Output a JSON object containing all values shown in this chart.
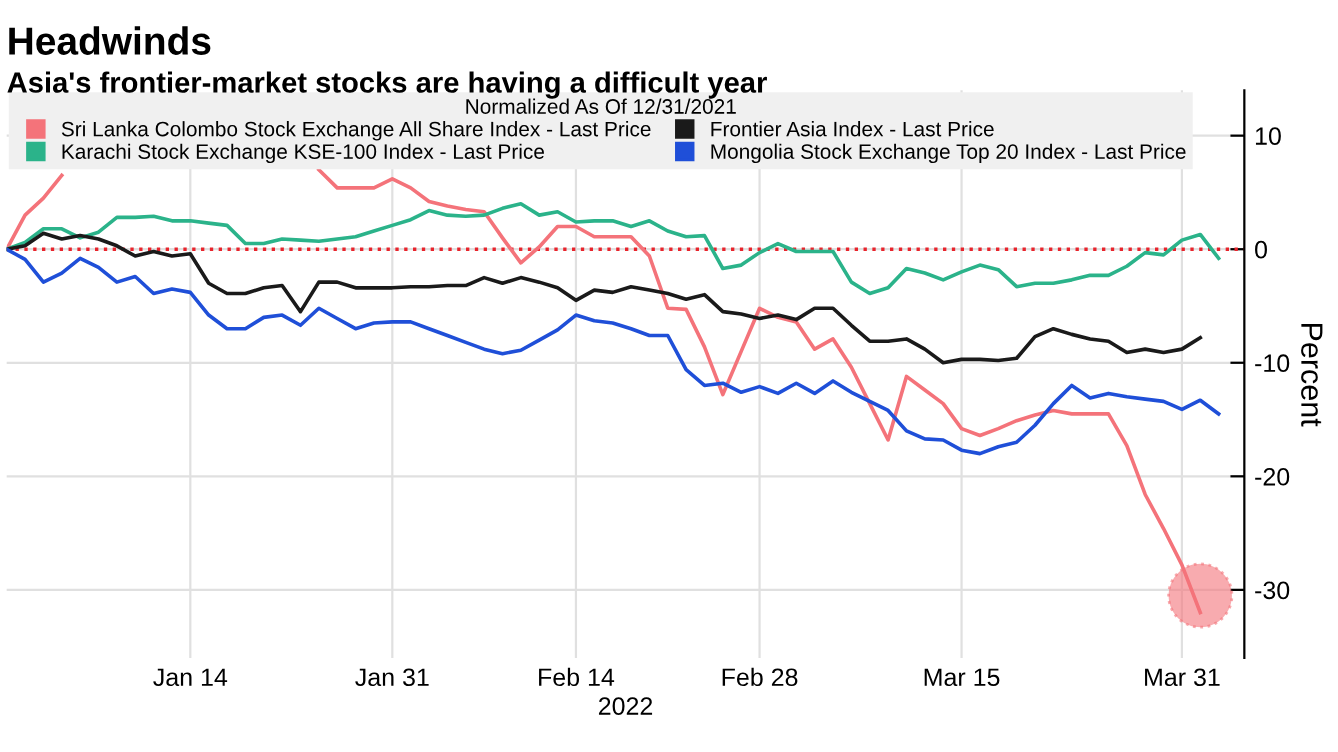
{
  "chart_data": {
    "type": "line",
    "title": "Headwinds",
    "subtitle": "Asia's frontier-market stocks are having a difficult year",
    "xlabel": "2022",
    "ylabel": "Percent",
    "legend_title": "Normalized As Of 12/31/2021",
    "categories": [
      null,
      null,
      null,
      null,
      null,
      null,
      null,
      null,
      null,
      null,
      "Jan 14",
      null,
      null,
      null,
      null,
      null,
      null,
      null,
      null,
      null,
      null,
      "Jan 31",
      null,
      null,
      null,
      null,
      null,
      null,
      null,
      null,
      null,
      "Feb 14",
      null,
      null,
      null,
      null,
      null,
      null,
      null,
      null,
      null,
      "Feb 28",
      null,
      null,
      null,
      null,
      null,
      null,
      null,
      null,
      null,
      null,
      "Mar 15",
      null,
      null,
      null,
      null,
      null,
      null,
      null,
      null,
      null,
      null,
      null,
      "Mar 31",
      null,
      null
    ],
    "series": [
      {
        "name": "Sri Lanka Colombo Stock Exchange All Share Index - Last Price",
        "color": "#f4737a",
        "values": [
          0,
          3,
          4.5,
          6.5,
          null,
          null,
          null,
          null,
          null,
          null,
          null,
          null,
          null,
          null,
          null,
          null,
          null,
          7,
          5.4,
          5.4,
          5.4,
          6.2,
          5.4,
          4.2,
          3.8,
          3.5,
          3.3,
          1,
          -1.2,
          0.2,
          2,
          2,
          1.1,
          1.1,
          1.1,
          -0.6,
          -5.2,
          -5.3,
          -8.6,
          -12.8,
          -9,
          -5.2,
          -6,
          -6.4,
          -8.8,
          -7.9,
          -10.4,
          -13.6,
          -16.8,
          -11.2,
          -12.4,
          -13.6,
          -15.8,
          -16.4,
          -15.8,
          -15.1,
          -14.6,
          -14.2,
          -14.5,
          -14.5,
          -14.5,
          -17.3,
          -21.6,
          -24.6,
          -27.8,
          -32,
          null
        ]
      },
      {
        "name": "Karachi Stock Exchange KSE-100 Index - Last Price",
        "color": "#2bb38a",
        "values": [
          0,
          0.6,
          1.8,
          1.8,
          1,
          1.5,
          2.8,
          2.8,
          2.9,
          2.5,
          2.5,
          2.3,
          2.1,
          0.5,
          0.5,
          0.9,
          0.8,
          0.7,
          0.9,
          1.1,
          1.6,
          2.1,
          2.6,
          3.4,
          3,
          2.9,
          3,
          3.6,
          4,
          3,
          3.3,
          2.4,
          2.5,
          2.5,
          2,
          2.5,
          1.6,
          1.1,
          1.2,
          -1.7,
          -1.4,
          -0.3,
          0.5,
          -0.2,
          -0.2,
          -0.2,
          -2.9,
          -3.9,
          -3.4,
          -1.7,
          -2.1,
          -2.7,
          -2,
          -1.4,
          -1.8,
          -3.3,
          -3,
          -3,
          -2.7,
          -2.3,
          -2.3,
          -1.5,
          -0.3,
          -0.5,
          0.8,
          1.3,
          -0.8
        ]
      },
      {
        "name": "Frontier Asia Index - Last Price",
        "color": "#1a1a1a",
        "values": [
          0,
          0.3,
          1.4,
          0.9,
          1.2,
          0.9,
          0.3,
          -0.6,
          -0.2,
          -0.6,
          -0.4,
          -3,
          -3.9,
          -3.9,
          -3.4,
          -3.2,
          -5.5,
          -2.9,
          -2.9,
          -3.4,
          -3.4,
          -3.4,
          -3.3,
          -3.3,
          -3.2,
          -3.2,
          -2.5,
          -3,
          -2.5,
          -2.9,
          -3.4,
          -4.5,
          -3.6,
          -3.8,
          -3.3,
          -3.6,
          -3.9,
          -4.4,
          -4,
          -5.5,
          -5.7,
          -6.1,
          -5.8,
          -6.2,
          -5.2,
          -5.2,
          -6.7,
          -8.1,
          -8.1,
          -7.9,
          -8.8,
          -10,
          -9.7,
          -9.7,
          -9.8,
          -9.6,
          -7.7,
          -7,
          -7.5,
          -7.9,
          -8.1,
          -9.1,
          -8.8,
          -9.1,
          -8.8,
          -7.8,
          null
        ]
      },
      {
        "name": "Mongolia Stock Exchange Top 20 Index - Last Price",
        "color": "#1f4fd8",
        "values": [
          0,
          -0.9,
          -2.9,
          -2.1,
          -0.8,
          -1.6,
          -2.9,
          -2.4,
          -3.9,
          -3.5,
          -3.8,
          -5.8,
          -7,
          -7,
          -6,
          -5.8,
          -6.7,
          -5.2,
          -6.1,
          -7,
          -6.5,
          -6.4,
          -6.4,
          -7,
          -7.6,
          -8.2,
          -8.8,
          -9.2,
          -8.9,
          -8,
          -7.1,
          -5.8,
          -6.3,
          -6.5,
          -7,
          -7.6,
          -7.6,
          -10.6,
          -12,
          -11.8,
          -12.6,
          -12.1,
          -12.7,
          -11.8,
          -12.7,
          -11.6,
          -12.6,
          -13.4,
          -14.2,
          -16,
          -16.7,
          -16.8,
          -17.7,
          -18,
          -17.4,
          -17,
          -15.5,
          -13.6,
          -12,
          -13.1,
          -12.7,
          -13,
          -13.2,
          -13.4,
          -14.1,
          -13.3,
          -14.5
        ]
      },
      {
        "type": "scatter",
        "marker": "circle",
        "color": "#f4737a",
        "values": [
          null,
          null,
          null,
          null,
          null,
          null,
          null,
          null,
          null,
          null,
          null,
          null,
          null,
          null,
          null,
          null,
          null,
          null,
          null,
          null,
          null,
          null,
          null,
          null,
          null,
          null,
          null,
          null,
          null,
          null,
          null,
          null,
          null,
          null,
          null,
          null,
          null,
          null,
          null,
          null,
          null,
          null,
          null,
          null,
          null,
          null,
          null,
          null,
          null,
          null,
          null,
          null,
          null,
          null,
          null,
          null,
          null,
          null,
          null,
          null,
          null,
          null,
          null,
          null,
          null,
          -30.5,
          null
        ]
      }
    ],
    "ylim": [
      -36,
      14
    ],
    "yticks": [
      -30,
      -20,
      -10,
      0,
      10
    ],
    "ref_lines": [
      {
        "axis": "y",
        "value": 0,
        "color": "#e8242c",
        "line_style": "dotted"
      }
    ],
    "grid": true,
    "legend": "top left",
    "marker": "none",
    "line_style": "solid"
  }
}
